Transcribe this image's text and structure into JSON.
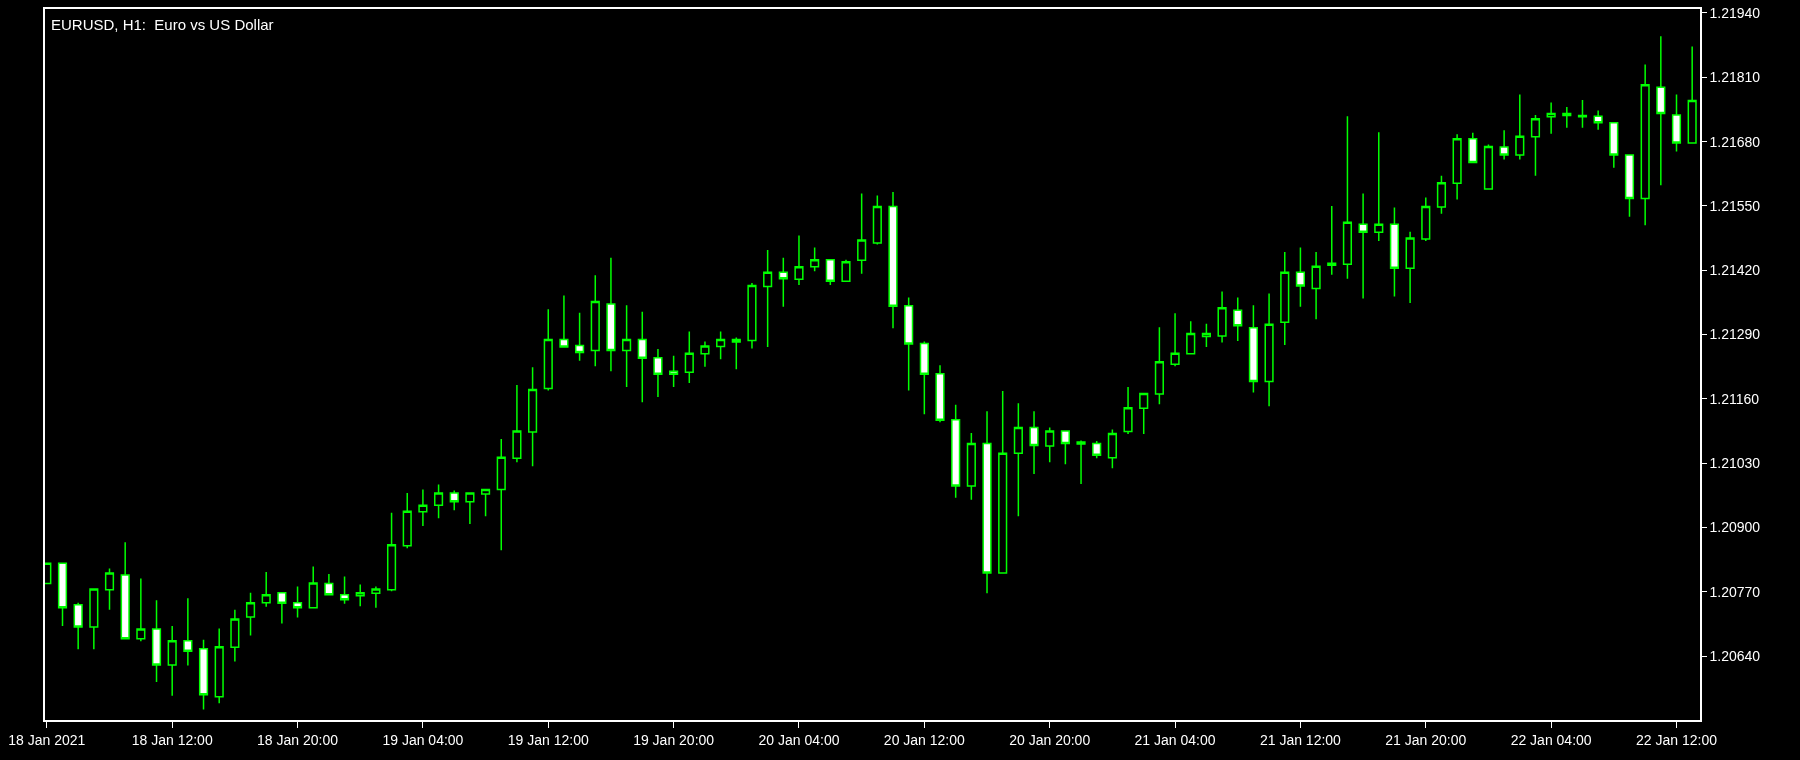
{
  "chart_data": {
    "type": "candlestick",
    "title": "EURUSD, H1:  Euro vs US Dollar",
    "color": "#00ff00",
    "x": [
      "2021-01-18T04:00",
      "2021-01-18T05:00",
      "2021-01-18T06:00",
      "2021-01-18T07:00",
      "2021-01-18T08:00",
      "2021-01-18T09:00",
      "2021-01-18T10:00",
      "2021-01-18T11:00",
      "2021-01-18T12:00",
      "2021-01-18T13:00",
      "2021-01-18T14:00",
      "2021-01-18T15:00",
      "2021-01-18T16:00",
      "2021-01-18T17:00",
      "2021-01-18T18:00",
      "2021-01-18T19:00",
      "2021-01-18T20:00",
      "2021-01-18T21:00",
      "2021-01-18T22:00",
      "2021-01-18T23:00",
      "2021-01-19T00:00",
      "2021-01-19T01:00",
      "2021-01-19T02:00",
      "2021-01-19T03:00",
      "2021-01-19T04:00",
      "2021-01-19T05:00",
      "2021-01-19T06:00",
      "2021-01-19T07:00",
      "2021-01-19T08:00",
      "2021-01-19T09:00",
      "2021-01-19T10:00",
      "2021-01-19T11:00",
      "2021-01-19T12:00",
      "2021-01-19T13:00",
      "2021-01-19T14:00",
      "2021-01-19T15:00",
      "2021-01-19T16:00",
      "2021-01-19T17:00",
      "2021-01-19T18:00",
      "2021-01-19T19:00",
      "2021-01-19T20:00",
      "2021-01-19T21:00",
      "2021-01-19T22:00",
      "2021-01-19T23:00",
      "2021-01-20T00:00",
      "2021-01-20T01:00",
      "2021-01-20T02:00",
      "2021-01-20T03:00",
      "2021-01-20T04:00",
      "2021-01-20T05:00",
      "2021-01-20T06:00",
      "2021-01-20T07:00",
      "2021-01-20T08:00",
      "2021-01-20T09:00",
      "2021-01-20T10:00",
      "2021-01-20T11:00",
      "2021-01-20T12:00",
      "2021-01-20T13:00",
      "2021-01-20T14:00",
      "2021-01-20T15:00",
      "2021-01-20T16:00",
      "2021-01-20T17:00",
      "2021-01-20T18:00",
      "2021-01-20T19:00",
      "2021-01-20T20:00",
      "2021-01-20T21:00",
      "2021-01-20T22:00",
      "2021-01-20T23:00",
      "2021-01-21T00:00",
      "2021-01-21T01:00",
      "2021-01-21T02:00",
      "2021-01-21T03:00",
      "2021-01-21T04:00",
      "2021-01-21T05:00",
      "2021-01-21T06:00",
      "2021-01-21T07:00",
      "2021-01-21T08:00",
      "2021-01-21T09:00",
      "2021-01-21T10:00",
      "2021-01-21T11:00",
      "2021-01-21T12:00",
      "2021-01-21T13:00",
      "2021-01-21T14:00",
      "2021-01-21T15:00",
      "2021-01-21T16:00",
      "2021-01-21T17:00",
      "2021-01-21T18:00",
      "2021-01-21T19:00",
      "2021-01-21T20:00",
      "2021-01-21T21:00",
      "2021-01-21T22:00",
      "2021-01-21T23:00",
      "2021-01-22T00:00",
      "2021-01-22T01:00",
      "2021-01-22T02:00",
      "2021-01-22T03:00",
      "2021-01-22T04:00",
      "2021-01-22T05:00",
      "2021-01-22T06:00",
      "2021-01-22T07:00",
      "2021-01-22T08:00",
      "2021-01-22T09:00",
      "2021-01-22T10:00",
      "2021-01-22T11:00",
      "2021-01-22T12:00",
      "2021-01-22T13:00"
    ],
    "ohlc": [
      [
        1.20787,
        1.20828,
        1.20787,
        1.20828
      ],
      [
        1.20828,
        1.20828,
        1.20701,
        1.20738
      ],
      [
        1.20744,
        1.20748,
        1.20654,
        1.20699
      ],
      [
        1.20699,
        1.20776,
        1.20654,
        1.20776
      ],
      [
        1.20774,
        1.20817,
        1.20734,
        1.20808
      ],
      [
        1.20804,
        1.2087,
        1.20675,
        1.20675
      ],
      [
        1.20675,
        1.20797,
        1.2067,
        1.20695
      ],
      [
        1.20695,
        1.20753,
        1.20588,
        1.20622
      ],
      [
        1.20622,
        1.20701,
        1.2056,
        1.20671
      ],
      [
        1.20671,
        1.20757,
        1.20621,
        1.2065
      ],
      [
        1.20655,
        1.20673,
        1.20532,
        1.20562
      ],
      [
        1.20558,
        1.20696,
        1.20545,
        1.20659
      ],
      [
        1.20658,
        1.20734,
        1.20629,
        1.20715
      ],
      [
        1.20719,
        1.20768,
        1.20682,
        1.20748
      ],
      [
        1.20748,
        1.2081,
        1.2074,
        1.20764
      ],
      [
        1.20768,
        1.20768,
        1.20706,
        1.20747
      ],
      [
        1.20748,
        1.20781,
        1.20718,
        1.20738
      ],
      [
        1.20738,
        1.20821,
        1.20738,
        1.20788
      ],
      [
        1.20787,
        1.20806,
        1.20764,
        1.20764
      ],
      [
        1.20764,
        1.20801,
        1.20746,
        1.20754
      ],
      [
        1.20762,
        1.20785,
        1.20741,
        1.20768
      ],
      [
        1.20767,
        1.20781,
        1.20738,
        1.20776
      ],
      [
        1.20774,
        1.2093,
        1.20771,
        1.20865
      ],
      [
        1.20863,
        1.2097,
        1.20858,
        1.20933
      ],
      [
        1.20932,
        1.20977,
        1.20903,
        1.20945
      ],
      [
        1.20945,
        1.20987,
        1.20919,
        1.2097
      ],
      [
        1.2097,
        1.20975,
        1.20935,
        1.20952
      ],
      [
        1.20952,
        1.2097,
        1.20907,
        1.2097
      ],
      [
        1.20968,
        1.20977,
        1.20923,
        1.20977
      ],
      [
        1.20977,
        1.21079,
        1.20854,
        1.21042
      ],
      [
        1.2104,
        1.21188,
        1.21032,
        1.21095
      ],
      [
        1.21093,
        1.21224,
        1.21024,
        1.21179
      ],
      [
        1.21181,
        1.21341,
        1.21177,
        1.2128
      ],
      [
        1.2128,
        1.21369,
        1.21265,
        1.21265
      ],
      [
        1.21268,
        1.21334,
        1.21237,
        1.21254
      ],
      [
        1.21258,
        1.2141,
        1.21226,
        1.21357
      ],
      [
        1.21352,
        1.21445,
        1.21216,
        1.21258
      ],
      [
        1.21258,
        1.21349,
        1.21184,
        1.2128
      ],
      [
        1.2128,
        1.21336,
        1.21153,
        1.21242
      ],
      [
        1.21243,
        1.21261,
        1.21164,
        1.2121
      ],
      [
        1.21216,
        1.21247,
        1.21184,
        1.2121
      ],
      [
        1.21214,
        1.21296,
        1.21192,
        1.21252
      ],
      [
        1.21251,
        1.21276,
        1.21225,
        1.21267
      ],
      [
        1.21266,
        1.21296,
        1.2124,
        1.2128
      ],
      [
        1.21275,
        1.21284,
        1.2122,
        1.2128
      ],
      [
        1.21278,
        1.21394,
        1.21262,
        1.21389
      ],
      [
        1.21387,
        1.21461,
        1.21265,
        1.21416
      ],
      [
        1.21416,
        1.21445,
        1.21346,
        1.21403
      ],
      [
        1.21402,
        1.2149,
        1.2139,
        1.21427
      ],
      [
        1.21427,
        1.21466,
        1.21418,
        1.21441
      ],
      [
        1.21441,
        1.21441,
        1.2139,
        1.21398
      ],
      [
        1.21398,
        1.21441,
        1.21398,
        1.21437
      ],
      [
        1.2144,
        1.21575,
        1.21413,
        1.21481
      ],
      [
        1.21475,
        1.21571,
        1.21472,
        1.21549
      ],
      [
        1.21549,
        1.21578,
        1.21303,
        1.21347
      ],
      [
        1.21348,
        1.21365,
        1.21177,
        1.21271
      ],
      [
        1.21272,
        1.21276,
        1.21129,
        1.2121
      ],
      [
        1.21211,
        1.21228,
        1.21113,
        1.21117
      ],
      [
        1.21118,
        1.21148,
        1.2096,
        1.20984
      ],
      [
        1.20984,
        1.21091,
        1.20956,
        1.2107
      ],
      [
        1.2107,
        1.21135,
        1.20767,
        1.20808
      ],
      [
        1.20808,
        1.21176,
        1.20808,
        1.2105
      ],
      [
        1.2105,
        1.21151,
        1.20923,
        1.21102
      ],
      [
        1.21102,
        1.21135,
        1.21008,
        1.21066
      ],
      [
        1.21065,
        1.21102,
        1.21032,
        1.21095
      ],
      [
        1.21095,
        1.21095,
        1.21028,
        1.2107
      ],
      [
        1.21073,
        1.21076,
        1.20988,
        1.21069
      ],
      [
        1.2107,
        1.21075,
        1.2104,
        1.21046
      ],
      [
        1.21041,
        1.21098,
        1.2102,
        1.2109
      ],
      [
        1.21094,
        1.21184,
        1.21089,
        1.21142
      ],
      [
        1.21141,
        1.21171,
        1.21089,
        1.21171
      ],
      [
        1.2117,
        1.21305,
        1.21149,
        1.21235
      ],
      [
        1.2123,
        1.21333,
        1.21226,
        1.21252
      ],
      [
        1.21251,
        1.21317,
        1.21251,
        1.21292
      ],
      [
        1.21286,
        1.21312,
        1.21265,
        1.21292
      ],
      [
        1.21287,
        1.21377,
        1.21274,
        1.21344
      ],
      [
        1.21339,
        1.21365,
        1.21277,
        1.21308
      ],
      [
        1.21304,
        1.21349,
        1.21173,
        1.21195
      ],
      [
        1.21195,
        1.21373,
        1.21145,
        1.21311
      ],
      [
        1.21315,
        1.21457,
        1.21269,
        1.21416
      ],
      [
        1.21416,
        1.21466,
        1.21346,
        1.21388
      ],
      [
        1.21383,
        1.21457,
        1.21321,
        1.21428
      ],
      [
        1.2143,
        1.2155,
        1.21411,
        1.21434
      ],
      [
        1.21432,
        1.21731,
        1.21403,
        1.21517
      ],
      [
        1.21513,
        1.21575,
        1.21363,
        1.21497
      ],
      [
        1.21497,
        1.21699,
        1.21479,
        1.21513
      ],
      [
        1.21513,
        1.21547,
        1.21367,
        1.21424
      ],
      [
        1.21424,
        1.21498,
        1.21354,
        1.21485
      ],
      [
        1.21483,
        1.21567,
        1.21479,
        1.21549
      ],
      [
        1.21548,
        1.21611,
        1.21534,
        1.21597
      ],
      [
        1.21596,
        1.21695,
        1.21563,
        1.21686
      ],
      [
        1.21686,
        1.21698,
        1.21638,
        1.21638
      ],
      [
        1.21584,
        1.21674,
        1.21584,
        1.2167
      ],
      [
        1.21669,
        1.21703,
        1.21644,
        1.21653
      ],
      [
        1.21653,
        1.21775,
        1.21644,
        1.21691
      ],
      [
        1.2169,
        1.21734,
        1.21611,
        1.21726
      ],
      [
        1.2173,
        1.21759,
        1.21696,
        1.21737
      ],
      [
        1.21733,
        1.2175,
        1.21708,
        1.21737
      ],
      [
        1.21733,
        1.21764,
        1.21708,
        1.2173
      ],
      [
        1.21731,
        1.21743,
        1.21704,
        1.21718
      ],
      [
        1.21718,
        1.21718,
        1.21627,
        1.21653
      ],
      [
        1.21653,
        1.21653,
        1.21528,
        1.21565
      ],
      [
        1.21565,
        1.21836,
        1.21511,
        1.21795
      ],
      [
        1.2179,
        1.21893,
        1.21592,
        1.21737
      ],
      [
        1.21734,
        1.21775,
        1.2166,
        1.21677
      ],
      [
        1.21677,
        1.21872,
        1.21677,
        1.21763
      ]
    ],
    "xlim": [
      "2021-01-18T03:53",
      "2021-01-22T13:30"
    ],
    "xticks": [
      {
        "value": "2021-01-18T04:00",
        "label": "18 Jan 2021"
      },
      {
        "value": "2021-01-18T12:00",
        "label": "18 Jan 12:00"
      },
      {
        "value": "2021-01-18T20:00",
        "label": "18 Jan 20:00"
      },
      {
        "value": "2021-01-19T04:00",
        "label": "19 Jan 04:00"
      },
      {
        "value": "2021-01-19T12:00",
        "label": "19 Jan 12:00"
      },
      {
        "value": "2021-01-19T20:00",
        "label": "19 Jan 20:00"
      },
      {
        "value": "2021-01-20T04:00",
        "label": "20 Jan 04:00"
      },
      {
        "value": "2021-01-20T12:00",
        "label": "20 Jan 12:00"
      },
      {
        "value": "2021-01-20T20:00",
        "label": "20 Jan 20:00"
      },
      {
        "value": "2021-01-21T04:00",
        "label": "21 Jan 04:00"
      },
      {
        "value": "2021-01-21T12:00",
        "label": "21 Jan 12:00"
      },
      {
        "value": "2021-01-21T20:00",
        "label": "21 Jan 20:00"
      },
      {
        "value": "2021-01-22T04:00",
        "label": "22 Jan 04:00"
      },
      {
        "value": "2021-01-22T12:00",
        "label": "22 Jan 12:00"
      }
    ],
    "ylim": [
      1.20511,
      1.21948
    ],
    "yticks": [
      {
        "value": 1.2064,
        "label": "1.20640"
      },
      {
        "value": 1.2077,
        "label": "1.20770"
      },
      {
        "value": 1.209,
        "label": "1.20900"
      },
      {
        "value": 1.2103,
        "label": "1.21030"
      },
      {
        "value": 1.2116,
        "label": "1.21160"
      },
      {
        "value": 1.2129,
        "label": "1.21290"
      },
      {
        "value": 1.2142,
        "label": "1.21420"
      },
      {
        "value": 1.2155,
        "label": "1.21550"
      },
      {
        "value": 1.2168,
        "label": "1.21680"
      },
      {
        "value": 1.2181,
        "label": "1.21810"
      },
      {
        "value": 1.2194,
        "label": "1.21940"
      }
    ],
    "grid": false
  }
}
